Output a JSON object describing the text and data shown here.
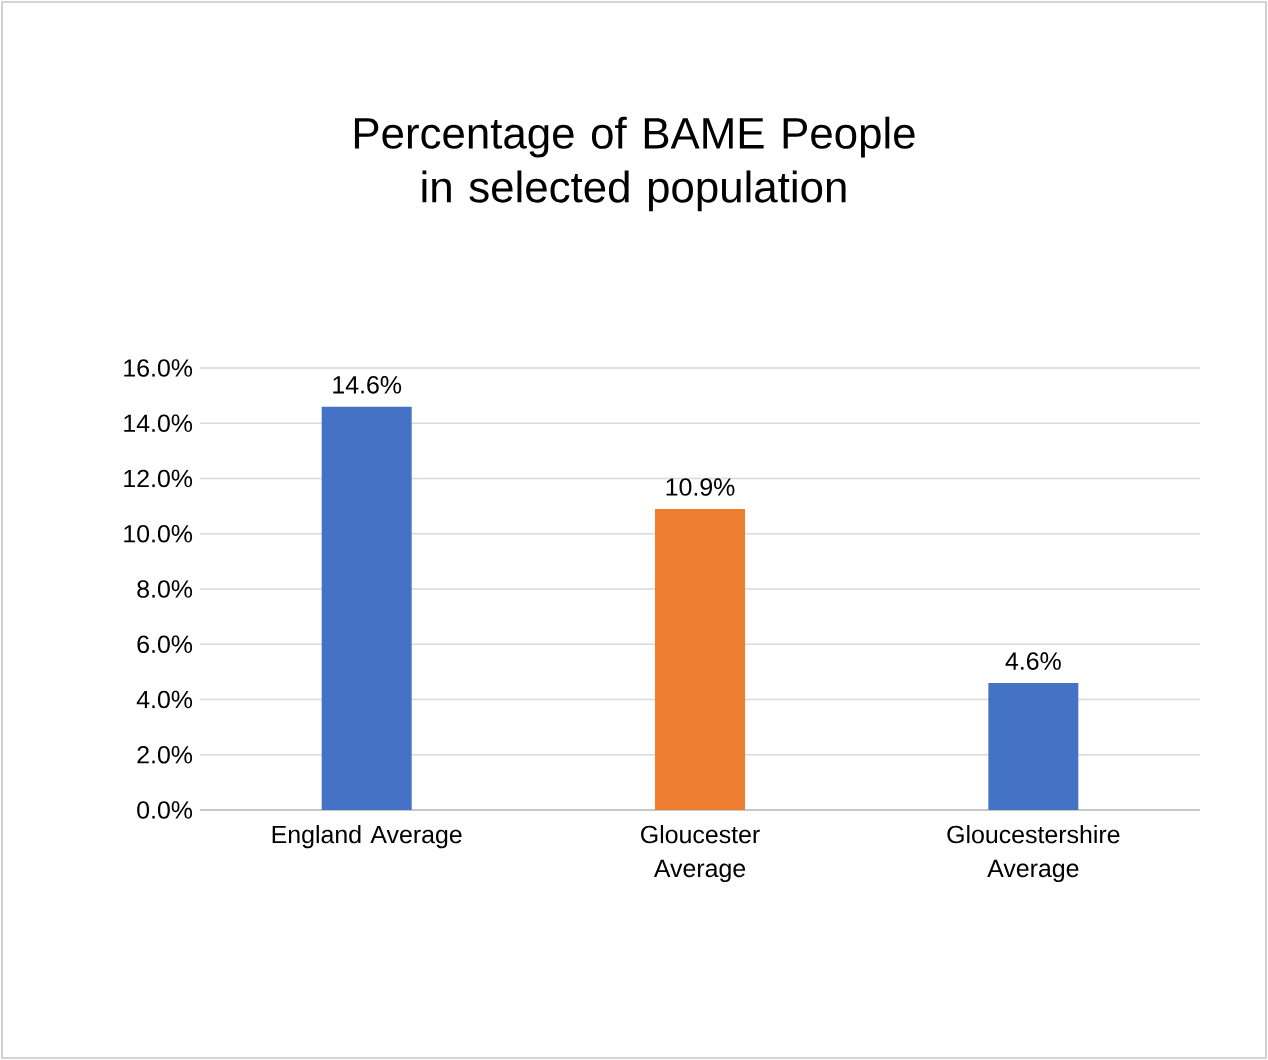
{
  "chart_data": {
    "type": "bar",
    "title": "Percentage of BAME People in selected population",
    "categories": [
      "England Average",
      "Gloucester Average",
      "Gloucestershire Average"
    ],
    "values": [
      14.6,
      10.9,
      4.6
    ],
    "colors": [
      "#4472c4",
      "#ed7d31",
      "#4472c4"
    ],
    "value_labels": [
      "14.6%",
      "10.9%",
      "4.6%"
    ],
    "ylim": [
      0,
      16
    ],
    "yticks": [
      {
        "value": 0,
        "label": "0.0%"
      },
      {
        "value": 2,
        "label": "2.0%"
      },
      {
        "value": 4,
        "label": "4.0%"
      },
      {
        "value": 6,
        "label": "6.0%"
      },
      {
        "value": 8,
        "label": "8.0%"
      },
      {
        "value": 10,
        "label": "10.0%"
      },
      {
        "value": 12,
        "label": "12.0%"
      },
      {
        "value": 14,
        "label": "14.0%"
      },
      {
        "value": 16,
        "label": "16.0%"
      }
    ],
    "grid": "y"
  }
}
